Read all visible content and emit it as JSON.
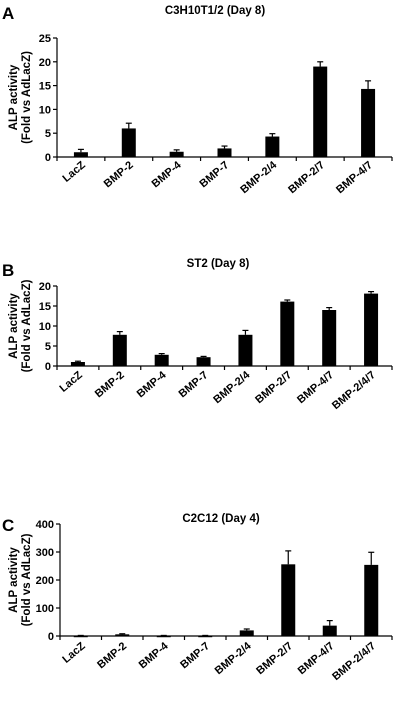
{
  "chart_data": [
    {
      "panel": "A",
      "type": "bar",
      "title": "C3H10T1/2 (Day 8)",
      "ylabel": [
        "ALP activity",
        "(Fold vs AdLacZ)"
      ],
      "xlabel": "",
      "categories": [
        "LacZ",
        "BMP-2",
        "BMP-4",
        "BMP-7",
        "BMP-2/4",
        "BMP-2/7",
        "BMP-4/7"
      ],
      "values": [
        1.0,
        6.0,
        1.1,
        1.8,
        4.3,
        19.0,
        14.3
      ],
      "errors": [
        0.6,
        1.1,
        0.4,
        0.5,
        0.6,
        1.0,
        1.7
      ],
      "ylim": [
        0,
        25
      ],
      "yticks": [
        0,
        5,
        10,
        15,
        20,
        25
      ],
      "bar_color": "#000000",
      "grid": false
    },
    {
      "panel": "B",
      "type": "bar",
      "title": "ST2 (Day 8)",
      "ylabel": [
        "ALP activity",
        "(Fold vs AdLacZ)"
      ],
      "xlabel": "",
      "categories": [
        "LacZ",
        "BMP-2",
        "BMP-4",
        "BMP-7",
        "BMP-2/4",
        "BMP-2/7",
        "BMP-4/7",
        "BMP-2/4/7"
      ],
      "values": [
        1.0,
        7.8,
        2.8,
        2.2,
        7.8,
        16.1,
        14.0,
        18.1
      ],
      "errors": [
        0.2,
        0.8,
        0.3,
        0.2,
        1.1,
        0.4,
        0.6,
        0.5
      ],
      "ylim": [
        0,
        20
      ],
      "yticks": [
        0,
        5,
        10,
        15,
        20
      ],
      "bar_color": "#000000",
      "grid": false
    },
    {
      "panel": "C",
      "type": "bar",
      "title": "C2C12 (Day 4)",
      "ylabel": [
        "ALP activity",
        "(Fold vs AdLacZ)"
      ],
      "xlabel": "",
      "categories": [
        "LacZ",
        "BMP-2",
        "BMP-4",
        "BMP-7",
        "BMP-2/4",
        "BMP-2/7",
        "BMP-4/7",
        "BMP-2/4/7"
      ],
      "values": [
        1,
        6,
        1,
        1,
        20,
        256,
        37,
        254
      ],
      "errors": [
        1,
        2,
        1,
        1,
        5,
        48,
        18,
        45
      ],
      "ylim": [
        0,
        400
      ],
      "yticks": [
        0,
        100,
        200,
        300,
        400
      ],
      "bar_color": "#000000",
      "grid": false
    }
  ]
}
